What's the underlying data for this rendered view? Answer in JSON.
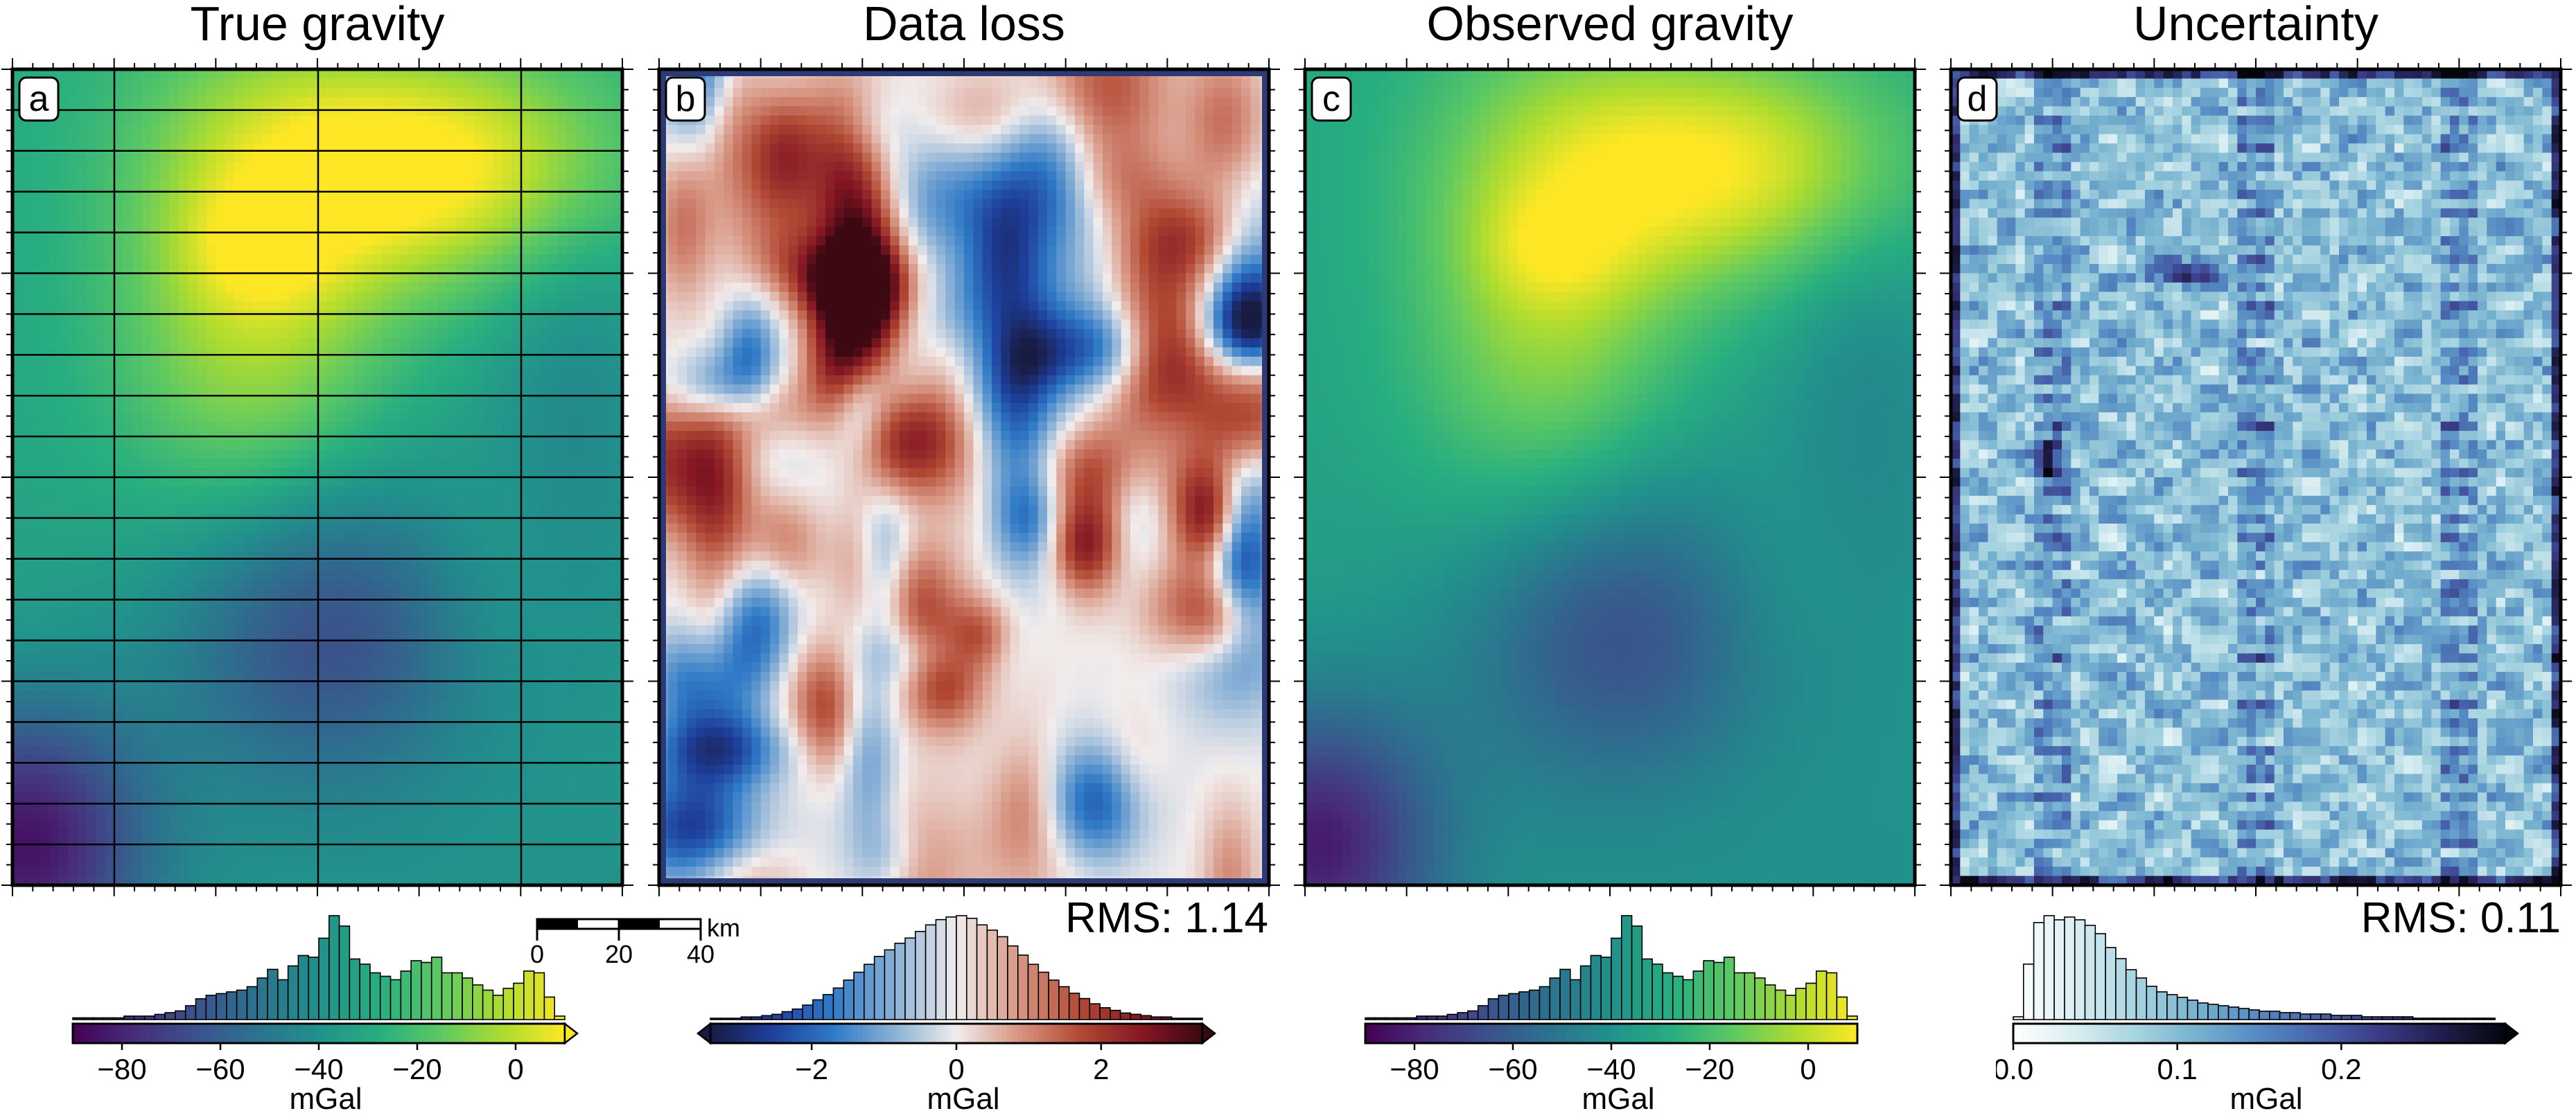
{
  "panels": [
    {
      "letter": "a",
      "title": "True gravity",
      "cmap": "viridis",
      "cbar": {
        "min": -90,
        "max": 10,
        "ticks": [
          -80,
          -60,
          -40,
          -20,
          0
        ],
        "labels": [
          "−80",
          "−60",
          "−40",
          "−20",
          "0"
        ],
        "label": "mGal",
        "extend": "max"
      },
      "hist": [
        1,
        1,
        1,
        1,
        1,
        2,
        2,
        2,
        3,
        4,
        5,
        8,
        12,
        14,
        15,
        16,
        17,
        19,
        24,
        29,
        23,
        31,
        37,
        36,
        47,
        60,
        54,
        35,
        32,
        27,
        25,
        23,
        28,
        34,
        33,
        36,
        27,
        27,
        24,
        20,
        17,
        14,
        18,
        21,
        28,
        27,
        13,
        2
      ],
      "rms": ""
    },
    {
      "letter": "b",
      "title": "Data loss",
      "cmap": "balance",
      "cbar": {
        "min": -3.4,
        "max": 3.4,
        "ticks": [
          -2,
          0,
          2
        ],
        "labels": [
          "−2",
          "0",
          "2"
        ],
        "label": "mGal",
        "extend": "both"
      },
      "hist": [
        1,
        1,
        1,
        2,
        2,
        3,
        4,
        6,
        8,
        11,
        15,
        19,
        24,
        30,
        36,
        42,
        48,
        53,
        58,
        62,
        67,
        72,
        76,
        78,
        79,
        77,
        72,
        68,
        63,
        56,
        49,
        42,
        36,
        30,
        25,
        20,
        16,
        12,
        9,
        7,
        5,
        4,
        3,
        2,
        2,
        1,
        1,
        1
      ],
      "rms": "RMS: 1.14"
    },
    {
      "letter": "c",
      "title": "Observed gravity",
      "cmap": "viridis",
      "cbar": {
        "min": -90,
        "max": 10,
        "ticks": [
          -80,
          -60,
          -40,
          -20,
          0
        ],
        "labels": [
          "−80",
          "−60",
          "−40",
          "−20",
          "0"
        ],
        "label": "mGal",
        "extend": "none"
      },
      "hist": [
        1,
        1,
        1,
        1,
        1,
        2,
        2,
        2,
        3,
        4,
        5,
        8,
        12,
        14,
        15,
        16,
        17,
        19,
        24,
        29,
        23,
        31,
        37,
        36,
        47,
        60,
        54,
        35,
        32,
        27,
        25,
        23,
        28,
        34,
        33,
        36,
        27,
        27,
        24,
        20,
        17,
        14,
        18,
        21,
        28,
        27,
        13,
        2
      ],
      "rms": ""
    },
    {
      "letter": "d",
      "title": "Uncertainty",
      "cmap": "ice",
      "cbar": {
        "min": 0,
        "max": 0.3,
        "ticks": [
          0,
          0.1,
          0.2
        ],
        "labels": [
          "0.0",
          "0.1",
          "0.2"
        ],
        "label": "mGal",
        "extend": "max"
      },
      "hist": [
        2,
        40,
        70,
        75,
        72,
        74,
        72,
        68,
        62,
        52,
        44,
        36,
        30,
        24,
        20,
        18,
        16,
        14,
        12,
        11,
        10,
        9,
        8,
        7,
        6,
        6,
        5,
        5,
        4,
        4,
        4,
        3,
        3,
        3,
        2,
        2,
        2,
        2,
        2,
        1,
        1,
        1,
        1,
        1,
        1,
        1,
        1,
        0
      ],
      "rms": "RMS: 0.11"
    }
  ],
  "scale_bar": {
    "ticks": [
      "0",
      "20",
      "40"
    ],
    "unit": "km"
  },
  "chart_data": [
    {
      "type": "heatmap",
      "title": "True gravity",
      "units": "mGal",
      "range": [
        -90,
        10
      ]
    },
    {
      "type": "heatmap",
      "title": "Data loss",
      "units": "mGal",
      "range": [
        -3.4,
        3.4
      ],
      "rms": 1.14
    },
    {
      "type": "heatmap",
      "title": "Observed gravity",
      "units": "mGal",
      "range": [
        -90,
        10
      ]
    },
    {
      "type": "heatmap",
      "title": "Uncertainty",
      "units": "mGal",
      "range": [
        0,
        0.3
      ],
      "rms": 0.11
    }
  ]
}
